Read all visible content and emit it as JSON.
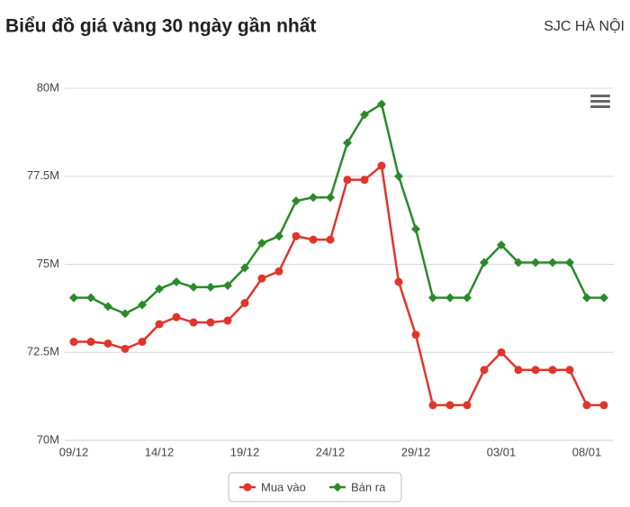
{
  "chart_data": {
    "type": "line",
    "title": "Biểu đồ giá vàng 30 ngày gần nhất",
    "subtitle": "SJC HÀ NỘI",
    "categories": [
      "09/12",
      null,
      null,
      null,
      null,
      "14/12",
      null,
      null,
      null,
      null,
      "19/12",
      null,
      null,
      null,
      null,
      "24/12",
      null,
      null,
      null,
      null,
      "29/12",
      null,
      null,
      null,
      null,
      "03/01",
      null,
      null,
      null,
      null,
      "08/01",
      null
    ],
    "series": [
      {
        "name": "Mua vào",
        "color": "#e0352b",
        "marker": "circle",
        "values": [
          72.8,
          72.8,
          72.75,
          72.6,
          72.8,
          73.3,
          73.5,
          73.35,
          73.35,
          73.4,
          73.9,
          74.6,
          74.8,
          75.8,
          75.7,
          75.7,
          77.4,
          77.4,
          77.8,
          74.5,
          73.0,
          71.0,
          71.0,
          71.0,
          72.0,
          72.5,
          72.0,
          72.0,
          72.0,
          72.0,
          71.0,
          71.0
        ]
      },
      {
        "name": "Bán ra",
        "color": "#2a8a2a",
        "marker": "diamond",
        "values": [
          74.05,
          74.05,
          73.8,
          73.6,
          73.85,
          74.3,
          74.5,
          74.35,
          74.35,
          74.4,
          74.9,
          75.6,
          75.8,
          76.8,
          76.9,
          76.9,
          78.45,
          79.25,
          79.55,
          77.5,
          76.0,
          74.05,
          74.05,
          74.05,
          75.05,
          75.55,
          75.05,
          75.05,
          75.05,
          75.05,
          74.05,
          74.05
        ]
      }
    ],
    "ylim": [
      70,
      80
    ],
    "yticks": [
      {
        "value": 70,
        "label": "70M"
      },
      {
        "value": 72.5,
        "label": "72.5M"
      },
      {
        "value": 75,
        "label": "75M"
      },
      {
        "value": 77.5,
        "label": "77.5M"
      },
      {
        "value": 80,
        "label": "80M"
      }
    ],
    "grid": true
  }
}
